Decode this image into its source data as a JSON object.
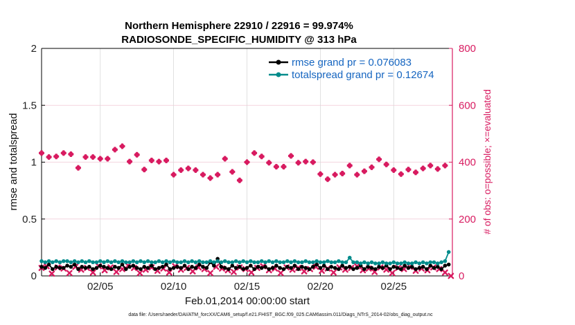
{
  "chart_data": {
    "type": "line",
    "title_line1": "Northern Hemisphere 22910 / 22916 = 99.974%",
    "title_line2": "RADIOSONDE_SPECIFIC_HUMIDITY @ 313 hPa",
    "xlabel": "Feb.01,2014 00:00:00 start",
    "ylabel_left": "rmse and totalspread",
    "ylabel_right": "# of obs: o=possible; ×=evaluated",
    "x_ticks": [
      "02/05",
      "02/10",
      "02/15",
      "02/20",
      "02/25"
    ],
    "x_tick_days": [
      5,
      10,
      15,
      20,
      25
    ],
    "xlim": [
      1,
      29
    ],
    "ylim_left": [
      0,
      2
    ],
    "y_ticks_left": [
      "0",
      "0.5",
      "1",
      "1.5",
      "2"
    ],
    "ylim_right": [
      0,
      800
    ],
    "y_ticks_right": [
      "0",
      "200",
      "400",
      "600",
      "800"
    ],
    "grid": true,
    "legend_position": "top-right",
    "series": [
      {
        "name": "rmse grand pr = 0.076083",
        "axis": "left",
        "color": "#000000",
        "style": "line-dots",
        "x": [
          1.0,
          1.25,
          1.5,
          1.75,
          2.0,
          2.25,
          2.5,
          2.75,
          3.0,
          3.25,
          3.5,
          3.75,
          4.0,
          4.25,
          4.5,
          4.75,
          5.0,
          5.25,
          5.5,
          5.75,
          6.0,
          6.25,
          6.5,
          6.75,
          7.0,
          7.25,
          7.5,
          7.75,
          8.0,
          8.25,
          8.5,
          8.75,
          9.0,
          9.25,
          9.5,
          9.75,
          10.0,
          10.25,
          10.5,
          10.75,
          11.0,
          11.25,
          11.5,
          11.75,
          12.0,
          12.25,
          12.5,
          12.75,
          13.0,
          13.25,
          13.5,
          13.75,
          14.0,
          14.25,
          14.5,
          14.75,
          15.0,
          15.25,
          15.5,
          15.75,
          16.0,
          16.25,
          16.5,
          16.75,
          17.0,
          17.25,
          17.5,
          17.75,
          18.0,
          18.25,
          18.5,
          18.75,
          19.0,
          19.25,
          19.5,
          19.75,
          20.0,
          20.25,
          20.5,
          20.75,
          21.0,
          21.25,
          21.5,
          21.75,
          22.0,
          22.25,
          22.5,
          22.75,
          23.0,
          23.25,
          23.5,
          23.75,
          24.0,
          24.25,
          24.5,
          24.75,
          25.0,
          25.25,
          25.5,
          25.75,
          26.0,
          26.25,
          26.5,
          26.75,
          27.0,
          27.25,
          27.5,
          27.75,
          28.0,
          28.25,
          28.5,
          28.75
        ],
        "values": [
          0.08,
          0.07,
          0.1,
          0.06,
          0.08,
          0.07,
          0.07,
          0.09,
          0.08,
          0.1,
          0.06,
          0.08,
          0.07,
          0.08,
          0.06,
          0.07,
          0.09,
          0.08,
          0.07,
          0.06,
          0.08,
          0.07,
          0.1,
          0.06,
          0.08,
          0.09,
          0.07,
          0.06,
          0.08,
          0.07,
          0.09,
          0.06,
          0.07,
          0.08,
          0.1,
          0.06,
          0.07,
          0.08,
          0.07,
          0.09,
          0.06,
          0.08,
          0.07,
          0.1,
          0.08,
          0.07,
          0.12,
          0.09,
          0.15,
          0.08,
          0.07,
          0.06,
          0.09,
          0.07,
          0.08,
          0.06,
          0.07,
          0.09,
          0.06,
          0.08,
          0.07,
          0.08,
          0.06,
          0.07,
          0.09,
          0.07,
          0.06,
          0.08,
          0.07,
          0.09,
          0.06,
          0.08,
          0.07,
          0.06,
          0.08,
          0.1,
          0.07,
          0.09,
          0.06,
          0.08,
          0.07,
          0.06,
          0.09,
          0.07,
          0.08,
          0.06,
          0.07,
          0.09,
          0.06,
          0.08,
          0.07,
          0.06,
          0.08,
          0.07,
          0.09,
          0.06,
          0.08,
          0.07,
          0.06,
          0.09,
          0.07,
          0.08,
          0.06,
          0.07,
          0.08,
          0.06,
          0.09,
          0.07,
          0.08,
          0.06,
          0.09,
          0.1
        ]
      },
      {
        "name": "totalspread grand pr = 0.12674",
        "axis": "left",
        "color": "#008b8b",
        "style": "line-dots",
        "x": [
          1.0,
          1.25,
          1.5,
          1.75,
          2.0,
          2.25,
          2.5,
          2.75,
          3.0,
          3.25,
          3.5,
          3.75,
          4.0,
          4.25,
          4.5,
          4.75,
          5.0,
          5.25,
          5.5,
          5.75,
          6.0,
          6.25,
          6.5,
          6.75,
          7.0,
          7.25,
          7.5,
          7.75,
          8.0,
          8.25,
          8.5,
          8.75,
          9.0,
          9.25,
          9.5,
          9.75,
          10.0,
          10.25,
          10.5,
          10.75,
          11.0,
          11.25,
          11.5,
          11.75,
          12.0,
          12.25,
          12.5,
          12.75,
          13.0,
          13.25,
          13.5,
          13.75,
          14.0,
          14.25,
          14.5,
          14.75,
          15.0,
          15.25,
          15.5,
          15.75,
          16.0,
          16.25,
          16.5,
          16.75,
          17.0,
          17.25,
          17.5,
          17.75,
          18.0,
          18.25,
          18.5,
          18.75,
          19.0,
          19.25,
          19.5,
          19.75,
          20.0,
          20.25,
          20.5,
          20.75,
          21.0,
          21.25,
          21.5,
          21.75,
          22.0,
          22.25,
          22.5,
          22.75,
          23.0,
          23.25,
          23.5,
          23.75,
          24.0,
          24.25,
          24.5,
          24.75,
          25.0,
          25.25,
          25.5,
          25.75,
          26.0,
          26.25,
          26.5,
          26.75,
          27.0,
          27.25,
          27.5,
          27.75,
          28.0,
          28.25,
          28.5,
          28.75
        ],
        "values": [
          0.13,
          0.12,
          0.13,
          0.12,
          0.13,
          0.12,
          0.13,
          0.13,
          0.12,
          0.13,
          0.12,
          0.13,
          0.12,
          0.13,
          0.12,
          0.12,
          0.13,
          0.12,
          0.13,
          0.12,
          0.13,
          0.12,
          0.13,
          0.12,
          0.12,
          0.13,
          0.12,
          0.13,
          0.12,
          0.13,
          0.12,
          0.12,
          0.13,
          0.12,
          0.13,
          0.12,
          0.13,
          0.12,
          0.12,
          0.13,
          0.12,
          0.13,
          0.12,
          0.13,
          0.12,
          0.12,
          0.13,
          0.12,
          0.13,
          0.12,
          0.13,
          0.12,
          0.12,
          0.13,
          0.12,
          0.13,
          0.12,
          0.13,
          0.12,
          0.12,
          0.13,
          0.12,
          0.13,
          0.12,
          0.13,
          0.12,
          0.12,
          0.13,
          0.12,
          0.13,
          0.12,
          0.12,
          0.13,
          0.12,
          0.12,
          0.13,
          0.12,
          0.12,
          0.13,
          0.12,
          0.12,
          0.13,
          0.12,
          0.12,
          0.16,
          0.12,
          0.12,
          0.11,
          0.12,
          0.11,
          0.12,
          0.11,
          0.11,
          0.12,
          0.11,
          0.11,
          0.12,
          0.11,
          0.11,
          0.12,
          0.11,
          0.11,
          0.12,
          0.11,
          0.12,
          0.11,
          0.12,
          0.12,
          0.11,
          0.12,
          0.13,
          0.21
        ]
      }
    ],
    "obs_possible": {
      "axis": "right",
      "color": "#d81b60",
      "marker": "o",
      "x": [
        1.0,
        1.5,
        2.0,
        2.5,
        3.0,
        3.5,
        4.0,
        4.5,
        5.0,
        5.5,
        6.0,
        6.5,
        7.0,
        7.5,
        8.0,
        8.5,
        9.0,
        9.5,
        10.0,
        10.5,
        11.0,
        11.5,
        12.0,
        12.5,
        13.0,
        13.5,
        14.0,
        14.5,
        15.0,
        15.5,
        16.0,
        16.5,
        17.0,
        17.5,
        18.0,
        18.5,
        19.0,
        19.5,
        20.0,
        20.5,
        21.0,
        21.5,
        22.0,
        22.5,
        23.0,
        23.5,
        24.0,
        24.5,
        25.0,
        25.5,
        26.0,
        26.5,
        27.0,
        27.5,
        28.0,
        28.5
      ],
      "values": [
        432,
        418,
        420,
        432,
        428,
        380,
        418,
        418,
        412,
        412,
        444,
        456,
        402,
        426,
        374,
        406,
        402,
        406,
        356,
        372,
        378,
        372,
        356,
        344,
        356,
        412,
        366,
        336,
        400,
        432,
        420,
        398,
        384,
        384,
        422,
        398,
        402,
        400,
        358,
        340,
        356,
        360,
        388,
        356,
        368,
        382,
        410,
        392,
        372,
        358,
        374,
        364,
        378,
        388,
        376,
        388
      ]
    },
    "obs_evaluated": {
      "axis": "right",
      "color": "#d81b60",
      "marker": "x",
      "x": [
        1.0,
        1.5,
        2.0,
        2.5,
        3.0,
        3.5,
        4.0,
        4.5,
        5.0,
        5.5,
        6.0,
        6.5,
        7.0,
        7.5,
        8.0,
        8.5,
        9.0,
        9.5,
        10.0,
        10.5,
        11.0,
        11.5,
        12.0,
        12.5,
        13.0,
        13.5,
        14.0,
        14.5,
        15.0,
        15.5,
        16.0,
        16.5,
        17.0,
        17.5,
        18.0,
        18.5,
        19.0,
        19.5,
        20.0,
        20.5,
        21.0,
        21.5,
        22.0,
        22.5,
        23.0,
        23.5,
        24.0,
        24.5,
        25.0,
        25.5,
        26.0,
        26.5,
        27.0,
        27.5,
        28.0,
        28.5
      ],
      "values": [
        432,
        418,
        420,
        432,
        428,
        380,
        418,
        418,
        412,
        412,
        444,
        456,
        402,
        426,
        374,
        406,
        402,
        406,
        356,
        372,
        378,
        372,
        356,
        344,
        356,
        412,
        366,
        336,
        400,
        432,
        420,
        398,
        384,
        384,
        422,
        398,
        402,
        400,
        358,
        340,
        356,
        360,
        388,
        356,
        368,
        382,
        410,
        392,
        372,
        358,
        374,
        364,
        378,
        388,
        376,
        388
      ]
    },
    "obs_low_x": [
      1.0,
      1.35,
      1.7,
      2.1,
      2.5,
      2.9,
      3.3,
      3.7,
      4.1,
      4.5,
      4.9,
      5.3,
      5.7,
      6.1,
      6.5,
      6.9,
      7.3,
      7.7,
      8.1,
      8.5,
      8.9,
      9.3,
      9.7,
      10.1,
      10.5,
      10.9,
      11.3,
      11.7,
      12.1,
      12.5,
      12.9,
      13.3,
      13.7,
      14.1,
      14.5,
      14.9,
      15.3,
      15.7,
      16.1,
      16.5,
      16.9,
      17.3,
      17.7,
      18.1,
      18.5,
      18.9,
      19.3,
      19.7,
      20.1,
      20.5,
      20.9,
      21.3,
      21.7,
      22.1,
      22.5,
      22.9,
      23.3,
      23.7,
      24.1,
      24.5,
      24.9,
      25.3,
      25.7,
      26.1,
      26.5,
      26.9,
      27.3,
      27.7,
      28.1,
      28.5,
      28.9
    ],
    "obs_low_values": [
      28,
      34,
      8,
      30,
      26,
      10,
      32,
      22,
      28,
      12,
      34,
      20,
      30,
      14,
      24,
      36,
      28,
      10,
      22,
      30,
      18,
      26,
      12,
      34,
      22,
      28,
      16,
      30,
      24,
      10,
      32,
      26,
      20,
      14,
      30,
      24,
      12,
      28,
      34,
      20,
      26,
      10,
      30,
      22,
      28,
      16,
      24,
      32,
      18,
      26,
      12,
      30,
      22,
      28,
      34,
      20,
      26,
      14,
      30,
      22,
      10,
      28,
      24,
      32,
      18,
      26,
      20,
      30,
      24,
      12,
      0
    ]
  },
  "footer": "data file: /Users/raeder/DAI/ATM_forcXX/CAM6_setup/f.e21.FHIST_BGC.f09_025.CAM6assim.011/Diags_NTrS_2014-02/obs_diag_output.nc"
}
